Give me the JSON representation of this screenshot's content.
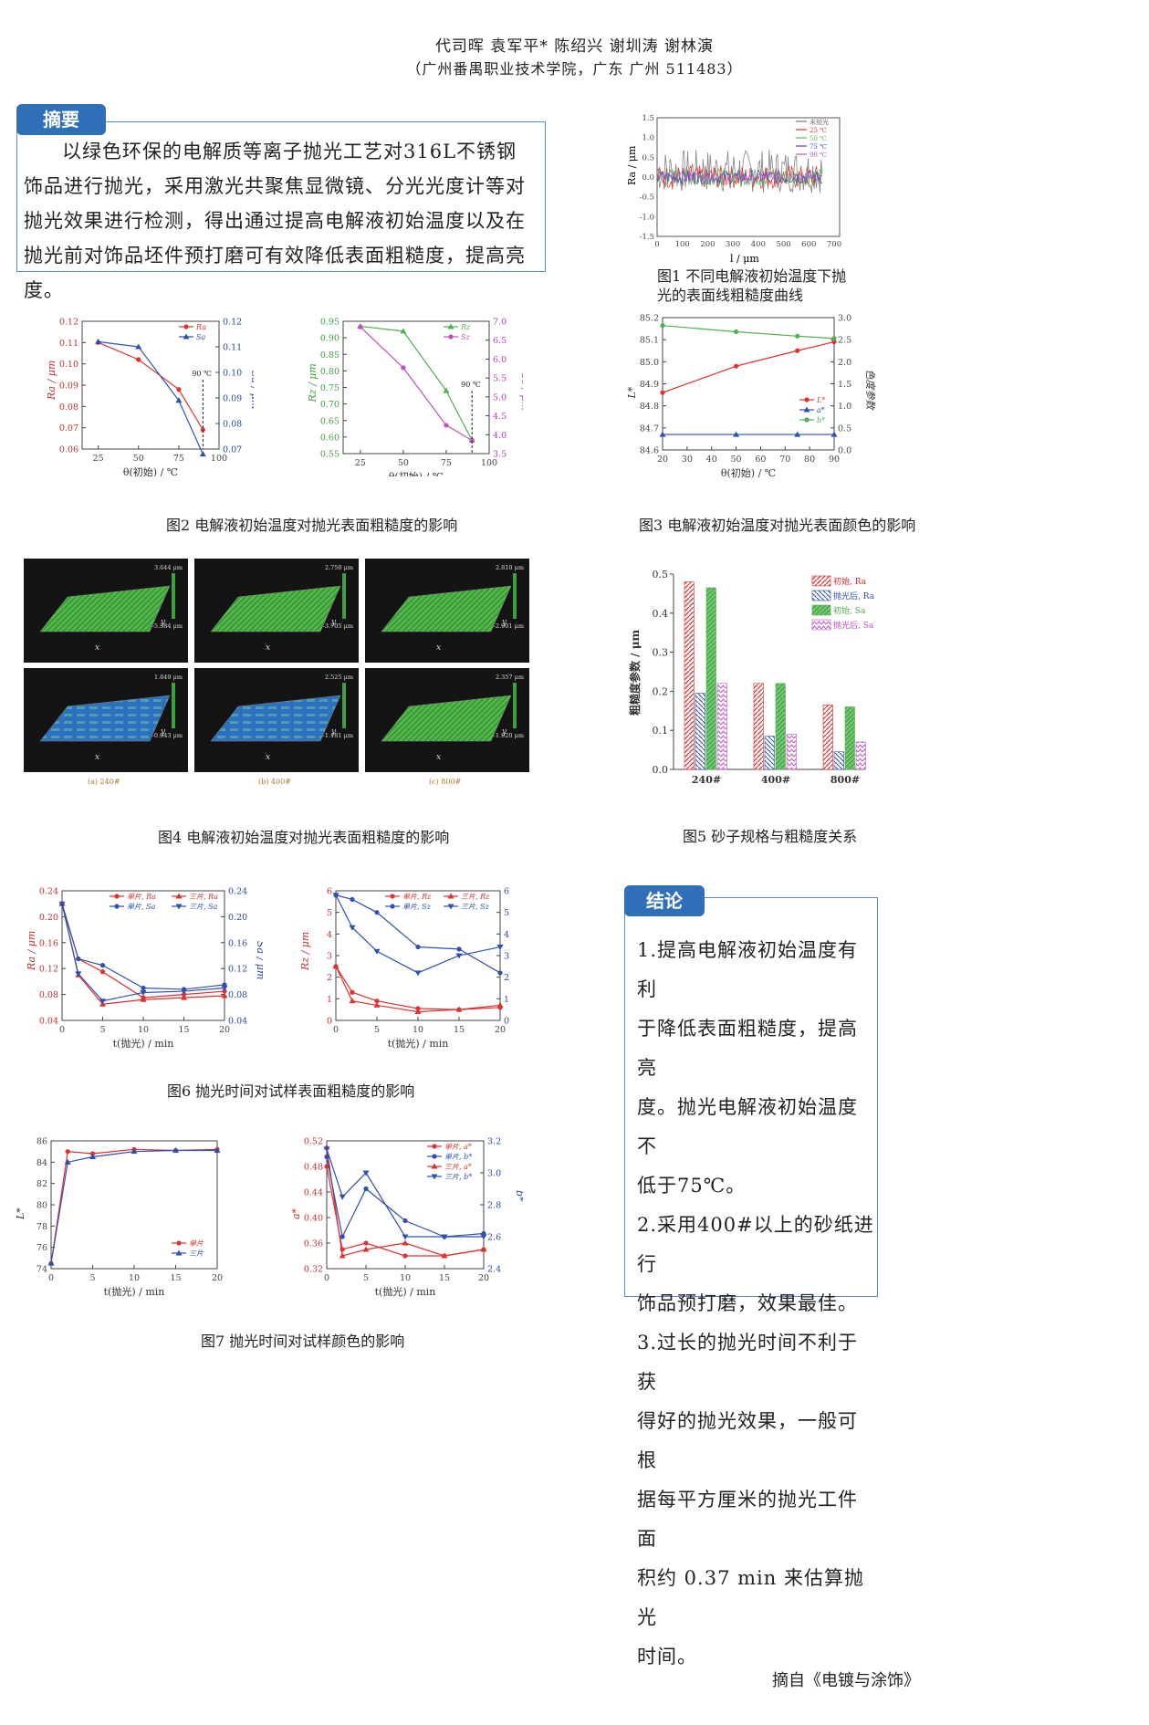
{
  "header": {
    "authors": "代司晖  袁军平*  陈绍兴   谢圳涛   谢林演",
    "affiliation": "（广州番禺职业技术学院，广东 广州 511483）"
  },
  "abstract": {
    "label": "摘要",
    "text": "以绿色环保的电解质等离子抛光工艺对316L不锈钢饰品进行抛光，采用激光共聚焦显微镜、分光光度计等对抛光效果进行检测，得出通过提高电解液初始温度以及在抛光前对饰品坯件预打磨可有效降低表面粗糙度，提高亮度。"
  },
  "fig1": {
    "caption": "图1 不同电解液初始温度下抛光的表面线粗糙度曲线",
    "ylabel": "Ra / μm",
    "xlabel": "l / μm",
    "yticks": [
      "1.5",
      "1.0",
      "0.5",
      "0.0",
      "-0.5",
      "-1.0",
      "-1.5"
    ],
    "xticks": [
      "0",
      "100",
      "200",
      "300",
      "400",
      "500",
      "600",
      "700"
    ],
    "legend": [
      "未抛光",
      "25 ℃",
      "50 ℃",
      "75 ℃",
      "90 ℃"
    ],
    "colors": [
      "#777777",
      "#e03030",
      "#55bb55",
      "#3050b0",
      "#c050c0"
    ]
  },
  "fig2": {
    "caption": "图2 电解液初始温度对抛光表面粗糙度的影响",
    "left": {
      "ylabel": "Ra / μm",
      "y2label": "Sa / μm",
      "xlabel": "θ(初始) / ℃",
      "yticks": [
        "0.12",
        "0.11",
        "0.10",
        "0.09",
        "0.08",
        "0.07",
        "0.06"
      ],
      "y2ticks": [
        "0.12",
        "0.11",
        "0.10",
        "0.09",
        "0.08",
        "0.07"
      ],
      "xticks": [
        "25",
        "50",
        "75",
        "100"
      ],
      "annotation": "90 ℃",
      "legend": [
        "Ra",
        "Sa"
      ]
    },
    "right": {
      "ylabel": "Rz / μm",
      "y2label": "Sz / μm",
      "xlabel": "θ(初始) / ℃",
      "yticks": [
        "0.95",
        "0.90",
        "0.85",
        "0.80",
        "0.75",
        "0.70",
        "0.65",
        "0.60",
        "0.55"
      ],
      "y2ticks": [
        "7.0",
        "6.5",
        "6.0",
        "5.5",
        "5.0",
        "4.5",
        "4.0",
        "3.5"
      ],
      "xticks": [
        "25",
        "50",
        "75",
        "100"
      ],
      "annotation": "90 ℃",
      "legend": [
        "Rz",
        "Sz"
      ]
    }
  },
  "fig3": {
    "caption": "图3 电解液初始温度对抛光表面颜色的影响",
    "ylabel": "L*",
    "y2label": "色度参数",
    "xlabel": "θ(初始) / ℃",
    "yticks": [
      "85.2",
      "85.1",
      "85.0",
      "84.9",
      "84.8",
      "84.7",
      "84.6"
    ],
    "y2ticks": [
      "3.0",
      "2.5",
      "2.0",
      "1.5",
      "1.0",
      "0.5",
      "0.0"
    ],
    "xticks": [
      "20",
      "30",
      "40",
      "50",
      "60",
      "70",
      "80",
      "90"
    ],
    "legend": [
      "L*",
      "a*",
      "b*"
    ]
  },
  "fig4": {
    "caption": "图4 电解液初始温度对抛光表面粗糙度的影响",
    "sublabels": [
      "(a) 240#",
      "(b) 400#",
      "(c) 800#"
    ],
    "scales": [
      [
        "3.644 μm",
        "-5.384 μm"
      ],
      [
        "2.750 μm",
        "-3.705 μm"
      ],
      [
        "2.810 μm",
        "-2.901 μm"
      ],
      [
        "1.849 μm",
        "-0.943 μm"
      ],
      [
        "2.525 μm",
        "-1.181 μm"
      ],
      [
        "2.357 μm",
        "-1.920 μm"
      ]
    ]
  },
  "fig5": {
    "caption": "图5 砂子规格与粗糙度关系",
    "ylabel": "粗糙度参数 / μm",
    "yticks": [
      "0.5",
      "0.4",
      "0.3",
      "0.2",
      "0.1",
      "0.0"
    ],
    "legend": [
      "初始, Ra",
      "抛光后, Ra",
      "初始, Sa",
      "抛光后, Sa"
    ]
  },
  "fig6": {
    "caption": "图6 抛光时间对试样表面粗糙度的影响",
    "left": {
      "ylabel": "Ra / μm",
      "y2label": "Sa / μm",
      "xlabel": "t(抛光) / min",
      "yticks": [
        "0.24",
        "0.20",
        "0.16",
        "0.12",
        "0.08",
        "0.04"
      ],
      "y2ticks": [
        "0.24",
        "0.20",
        "0.16",
        "0.12",
        "0.08",
        "0.04"
      ],
      "xticks": [
        "0",
        "5",
        "10",
        "15",
        "20"
      ],
      "legend": [
        "单片, Ra",
        "三片, Ra",
        "单片, Sa",
        "三片, Sa"
      ]
    },
    "right": {
      "ylabel": "Rz / μm",
      "y2label": "Sz / μm",
      "xlabel": "t(抛光) / min",
      "yticks": [
        "6",
        "5",
        "4",
        "3",
        "2",
        "1",
        "0"
      ],
      "y2ticks": [
        "6",
        "5",
        "4",
        "3",
        "2",
        "1",
        "0"
      ],
      "xticks": [
        "0",
        "5",
        "10",
        "15",
        "20"
      ],
      "legend": [
        "单片, Rz",
        "三片, Rz",
        "单片, Sz",
        "三片, Sz"
      ]
    }
  },
  "fig7": {
    "caption": "图7 抛光时间对试样颜色的影响",
    "left": {
      "ylabel": "L*",
      "xlabel": "t(抛光) / min",
      "yticks": [
        "86",
        "84",
        "82",
        "80",
        "78",
        "76",
        "74"
      ],
      "xticks": [
        "0",
        "5",
        "10",
        "15",
        "20"
      ],
      "legend": [
        "单片",
        "三片"
      ]
    },
    "right": {
      "ylabel": "a*",
      "y2label": "b*",
      "xlabel": "t(抛光) / min",
      "yticks": [
        "0.52",
        "0.48",
        "0.44",
        "0.40",
        "0.36",
        "0.32"
      ],
      "y2ticks": [
        "3.2",
        "3.0",
        "2.8",
        "2.6",
        "2.4"
      ],
      "xticks": [
        "0",
        "5",
        "10",
        "15",
        "20"
      ],
      "legend": [
        "单片, a*",
        "单片, b*",
        "三片, a*",
        "三片, b*"
      ]
    }
  },
  "conclusion": {
    "label": "结论",
    "lines": [
      "1.提高电解液初始温度有利",
      "于降低表面粗糙度，提高亮",
      "度。抛光电解液初始温度不",
      "低于75℃。",
      "2.采用400#以上的砂纸进行",
      "饰品预打磨，效果最佳。",
      "3.过长的抛光时间不利于获",
      "得好的抛光效果，一般可根",
      "据每平方厘米的抛光工件面",
      "积约 0.37 min 来估算抛光",
      "时间。"
    ]
  },
  "footer": {
    "source": "摘自《电镀与涂饰》"
  },
  "chart_data": [
    {
      "type": "line",
      "title": "图2 Ra/Sa",
      "x": [
        25,
        50,
        75,
        90
      ],
      "series": [
        {
          "name": "Ra",
          "values": [
            0.11,
            0.102,
            0.088,
            0.069
          ],
          "color": "#e03030"
        },
        {
          "name": "Sa",
          "values": [
            0.112,
            0.11,
            0.089,
            0.068
          ],
          "color": "#3050b0"
        }
      ],
      "ylim": [
        0.06,
        0.12
      ],
      "y2lim": [
        0.07,
        0.12
      ],
      "xlim": [
        25,
        100
      ]
    },
    {
      "type": "line",
      "title": "图2 Rz/Sz",
      "x": [
        25,
        50,
        75,
        90
      ],
      "series": [
        {
          "name": "Rz",
          "values": [
            0.935,
            0.92,
            0.74,
            0.59
          ],
          "color": "#50b050"
        },
        {
          "name": "Sz",
          "values": [
            6.85,
            5.77,
            4.25,
            3.85
          ],
          "color": "#c050c0"
        }
      ],
      "ylim": [
        0.55,
        0.95
      ],
      "y2lim": [
        3.5,
        7.0
      ],
      "xlim": [
        25,
        100
      ]
    },
    {
      "type": "line",
      "title": "图3",
      "x": [
        20,
        50,
        75,
        90
      ],
      "series": [
        {
          "name": "L*",
          "values": [
            84.86,
            84.98,
            85.05,
            85.09
          ],
          "color": "#e03030"
        },
        {
          "name": "a*",
          "values": [
            0.35,
            0.35,
            0.35,
            0.35
          ],
          "color": "#3050b0"
        },
        {
          "name": "b*",
          "values": [
            2.82,
            2.68,
            2.58,
            2.53
          ],
          "color": "#50b050"
        }
      ],
      "ylim": [
        84.6,
        85.2
      ],
      "y2lim": [
        0,
        3.0
      ],
      "xlim": [
        20,
        90
      ]
    },
    {
      "type": "bar",
      "title": "图5",
      "categories": [
        "240#",
        "400#",
        "800#"
      ],
      "series": [
        {
          "name": "初始, Ra",
          "values": [
            0.48,
            0.22,
            0.165
          ],
          "color": "#e03030"
        },
        {
          "name": "抛光后, Ra",
          "values": [
            0.195,
            0.085,
            0.045
          ],
          "color": "#3050b0"
        },
        {
          "name": "初始, Sa",
          "values": [
            0.465,
            0.22,
            0.16
          ],
          "color": "#50b050"
        },
        {
          "name": "抛光后, Sa",
          "values": [
            0.22,
            0.09,
            0.07
          ],
          "color": "#c050c0"
        }
      ],
      "ylim": [
        0,
        0.5
      ]
    },
    {
      "type": "line",
      "title": "图6 Ra/Sa",
      "x": [
        0,
        2,
        5,
        10,
        15,
        20
      ],
      "series": [
        {
          "name": "单片, Ra",
          "values": [
            0.22,
            0.135,
            0.115,
            0.075,
            0.08,
            0.085
          ],
          "color": "#e03030"
        },
        {
          "name": "三片, Ra",
          "values": [
            0.22,
            0.11,
            0.065,
            0.072,
            0.075,
            0.078
          ],
          "color": "#e03030"
        },
        {
          "name": "单片, Sa",
          "values": [
            0.22,
            0.135,
            0.125,
            0.09,
            0.088,
            0.095
          ],
          "color": "#3050b0"
        },
        {
          "name": "三片, Sa",
          "values": [
            0.22,
            0.112,
            0.07,
            0.083,
            0.085,
            0.09
          ],
          "color": "#3050b0"
        }
      ],
      "ylim": [
        0.04,
        0.24
      ],
      "y2lim": [
        0.04,
        0.24
      ],
      "xlim": [
        0,
        20
      ]
    },
    {
      "type": "line",
      "title": "图6 Rz/Sz",
      "x": [
        0,
        2,
        5,
        10,
        15,
        20
      ],
      "series": [
        {
          "name": "单片, Rz",
          "values": [
            2.5,
            1.3,
            0.9,
            0.55,
            0.5,
            0.6
          ],
          "color": "#e03030"
        },
        {
          "name": "三片, Rz",
          "values": [
            2.5,
            0.9,
            0.7,
            0.4,
            0.5,
            0.7
          ],
          "color": "#e03030"
        },
        {
          "name": "单片, Sz",
          "values": [
            5.8,
            5.6,
            5.0,
            3.4,
            3.3,
            2.2
          ],
          "color": "#3050b0"
        },
        {
          "name": "三片, Sz",
          "values": [
            5.8,
            4.3,
            3.2,
            2.2,
            3.0,
            3.4
          ],
          "color": "#3050b0"
        }
      ],
      "ylim": [
        0,
        6
      ],
      "y2lim": [
        0,
        6
      ],
      "xlim": [
        0,
        20
      ]
    },
    {
      "type": "line",
      "title": "图7 L*",
      "x": [
        0,
        2,
        5,
        10,
        15,
        20
      ],
      "series": [
        {
          "name": "单片",
          "values": [
            74.5,
            85.0,
            84.8,
            85.2,
            85.1,
            85.2
          ],
          "color": "#e03030"
        },
        {
          "name": "三片",
          "values": [
            74.5,
            84.0,
            84.5,
            85.0,
            85.1,
            85.1
          ],
          "color": "#3050b0"
        }
      ],
      "ylim": [
        74,
        86
      ],
      "xlim": [
        0,
        20
      ]
    },
    {
      "type": "line",
      "title": "图7 a*/b*",
      "x": [
        0,
        2,
        5,
        10,
        15,
        20
      ],
      "series": [
        {
          "name": "单片, a*",
          "values": [
            0.48,
            0.35,
            0.36,
            0.34,
            0.34,
            0.35
          ],
          "color": "#e03030"
        },
        {
          "name": "三片, a*",
          "values": [
            0.51,
            0.34,
            0.35,
            0.36,
            0.34,
            0.35
          ],
          "color": "#e03030"
        },
        {
          "name": "单片, b*",
          "values": [
            3.1,
            2.6,
            2.9,
            2.7,
            2.6,
            2.62
          ],
          "color": "#3050b0"
        },
        {
          "name": "三片, b*",
          "values": [
            3.15,
            2.85,
            3.0,
            2.6,
            2.6,
            2.6
          ],
          "color": "#3050b0"
        }
      ],
      "ylim": [
        0.32,
        0.52
      ],
      "y2lim": [
        2.4,
        3.2
      ],
      "xlim": [
        0,
        20
      ]
    }
  ]
}
